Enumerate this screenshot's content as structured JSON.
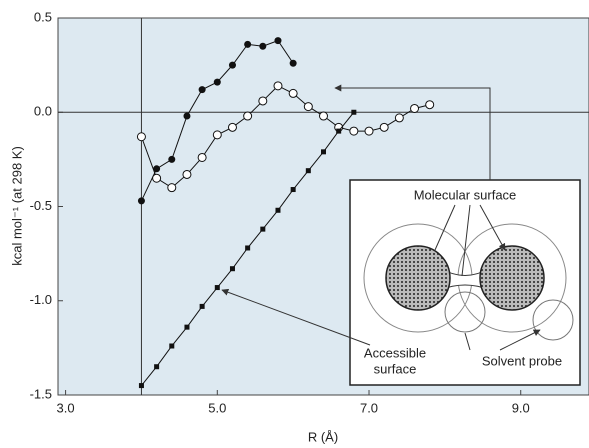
{
  "chart_data": {
    "type": "line",
    "x_label": "R (Å)",
    "y_label": "kcal mol⁻¹ (at 298 K)",
    "xlim": [
      2.9,
      9.9
    ],
    "ylim": [
      -1.5,
      0.5
    ],
    "xticks": [
      {
        "value": 3.0,
        "label": "3.0"
      },
      {
        "value": 5.0,
        "label": "5.0"
      },
      {
        "value": 7.0,
        "label": "7.0"
      },
      {
        "value": 9.0,
        "label": "9.0"
      }
    ],
    "yticks": [
      0.5,
      {
        "value": 0,
        "label": "0.0"
      },
      -0.5,
      {
        "value": -1.0,
        "label": "-1.0"
      },
      -1.5
    ],
    "xline": 4.0,
    "yline": 0,
    "background": "#dde9f1",
    "series": [
      {
        "marker": "filled-circle",
        "color": "#111111",
        "x": [
          4.0,
          4.2,
          4.4,
          4.6,
          4.8,
          5.0,
          5.2,
          5.4,
          5.6,
          5.8,
          6.0
        ],
        "values": [
          -0.47,
          -0.3,
          -0.25,
          -0.02,
          0.12,
          0.16,
          0.25,
          0.36,
          0.35,
          0.38,
          0.26
        ]
      },
      {
        "marker": "open-circle",
        "color": "#111111",
        "x": [
          4.0,
          4.2,
          4.4,
          4.6,
          4.8,
          5.0,
          5.2,
          5.4,
          5.6,
          5.8,
          6.0,
          6.2,
          6.4,
          6.6,
          6.8,
          7.0,
          7.2,
          7.4,
          7.6,
          7.8
        ],
        "values": [
          -0.13,
          -0.35,
          -0.4,
          -0.33,
          -0.24,
          -0.12,
          -0.08,
          -0.02,
          0.06,
          0.14,
          0.1,
          0.03,
          -0.02,
          -0.08,
          -0.1,
          -0.1,
          -0.08,
          -0.03,
          0.02,
          0.04
        ]
      },
      {
        "marker": "filled-square",
        "color": "#111111",
        "x": [
          4.0,
          4.2,
          4.4,
          4.6,
          4.8,
          5.0,
          5.2,
          5.4,
          5.6,
          5.8,
          6.0,
          6.2,
          6.4,
          6.6,
          6.8
        ],
        "values": [
          -1.45,
          -1.35,
          -1.24,
          -1.14,
          -1.03,
          -0.93,
          -0.83,
          -0.72,
          -0.62,
          -0.52,
          -0.41,
          -0.31,
          -0.21,
          -0.1,
          0.0
        ]
      }
    ],
    "inset": {
      "molecular_surface": "Molecular surface",
      "accessible_surface": [
        "Accessible",
        "surface"
      ],
      "solvent_probe": "Solvent probe"
    }
  }
}
